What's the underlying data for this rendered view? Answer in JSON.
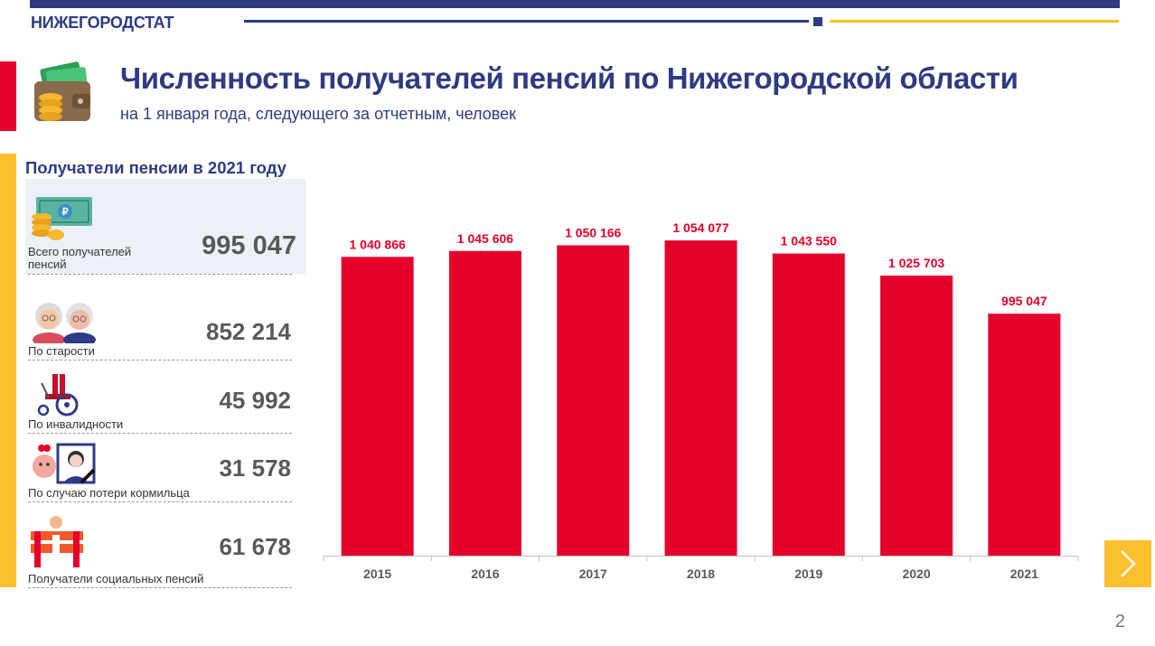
{
  "header": {
    "brand": "НИЖЕГОРОДСТАТ",
    "title": "Численность получателей пенсий по Нижегородской области",
    "subtitle": "на 1 января года, следующего за отчетным, человек"
  },
  "sidebar": {
    "section_title": "Получатели пенсии в 2021 году",
    "total": {
      "label_line1": "Всего получателей",
      "label_line2": "пенсий",
      "value": "995 047",
      "icon": "money-icon"
    },
    "categories": [
      {
        "label": "По старости",
        "value": "852 214",
        "icon": "elderly-couple-icon"
      },
      {
        "label": "По инвалидности",
        "value": "45 992",
        "icon": "wheelchair-icon"
      },
      {
        "label": "По случаю потери кормильца",
        "value": "31 578",
        "icon": "orphan-icon"
      },
      {
        "label": "Получатели социальных пенсий",
        "value": "61 678",
        "icon": "social-support-icon"
      }
    ]
  },
  "chart_data": {
    "type": "bar",
    "categories": [
      "2015",
      "2016",
      "2017",
      "2018",
      "2019",
      "2020",
      "2021"
    ],
    "values": [
      1040866,
      1045606,
      1050166,
      1054077,
      1043550,
      1025703,
      995047
    ],
    "data_labels": [
      "1 040 866",
      "1 045 606",
      "1 050 166",
      "1 054 077",
      "1 043 550",
      "1 025 703",
      "995 047"
    ],
    "title": "",
    "xlabel": "",
    "ylabel": "",
    "ylim": [
      800000,
      1060000
    ],
    "grid": false,
    "bar_color": "#e4002b",
    "label_color": "#e4002b"
  },
  "footer": {
    "page_number": "2"
  },
  "colors": {
    "brand_blue": "#2e3b82",
    "accent_red": "#e4002b",
    "accent_yellow": "#fbc02d"
  }
}
